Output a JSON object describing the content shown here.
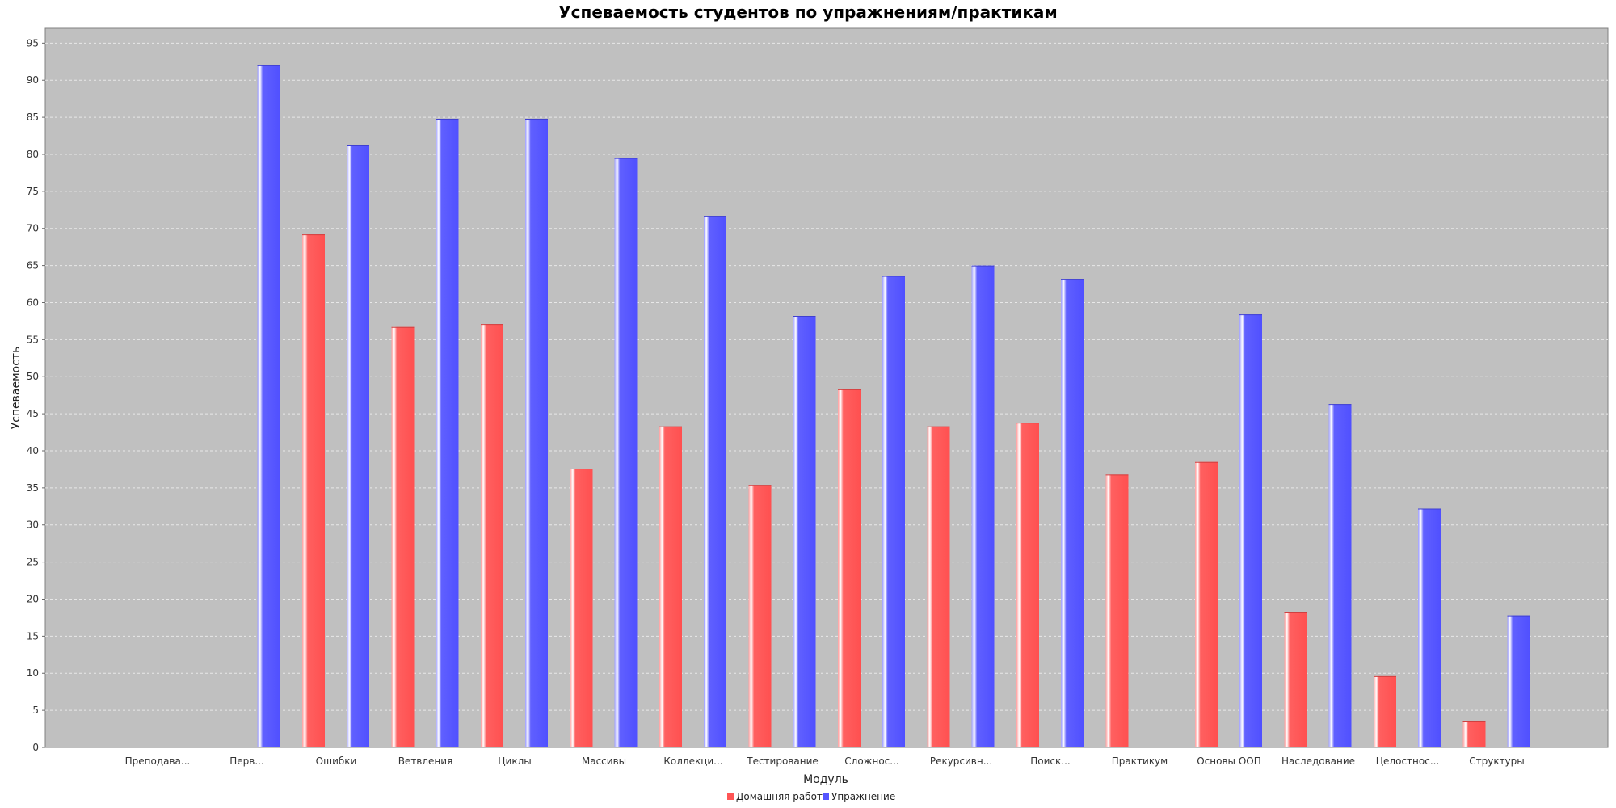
{
  "chart_data": {
    "type": "bar",
    "title": "Успеваемость студентов по упражнениям/практикам",
    "xlabel": "Модуль",
    "ylabel": "Успеваемость",
    "ylim": [
      0,
      97
    ],
    "yticks": [
      0,
      5,
      10,
      15,
      20,
      25,
      30,
      35,
      40,
      45,
      50,
      55,
      60,
      65,
      70,
      75,
      80,
      85,
      90,
      95
    ],
    "grid": true,
    "legend_position": "bottom",
    "categories": [
      "Преподава...",
      "Перв...",
      "Ошибки",
      "Ветвления",
      "Циклы",
      "Массивы",
      "Коллекци...",
      "Тестирование",
      "Сложнос...",
      "Рекурсивн...",
      "Поиск...",
      "Практикум",
      "Основы ООП",
      "Наследование",
      "Целостнос...",
      "Структуры"
    ],
    "series": [
      {
        "name": "Домашняя работа",
        "color": "#ff5555",
        "values": [
          null,
          null,
          69.2,
          56.7,
          57.1,
          37.6,
          43.3,
          35.4,
          48.3,
          43.3,
          43.8,
          36.8,
          38.5,
          18.2,
          9.6,
          3.6
        ]
      },
      {
        "name": "Упражнение",
        "color": "#5555ff",
        "values": [
          null,
          92.0,
          81.2,
          84.8,
          84.8,
          79.5,
          71.7,
          58.2,
          63.6,
          65.0,
          63.2,
          null,
          58.4,
          46.3,
          32.2,
          17.8
        ]
      }
    ]
  },
  "style": {
    "plot_background": "#c0c0c0",
    "grid_color": "#e8e8e8"
  }
}
